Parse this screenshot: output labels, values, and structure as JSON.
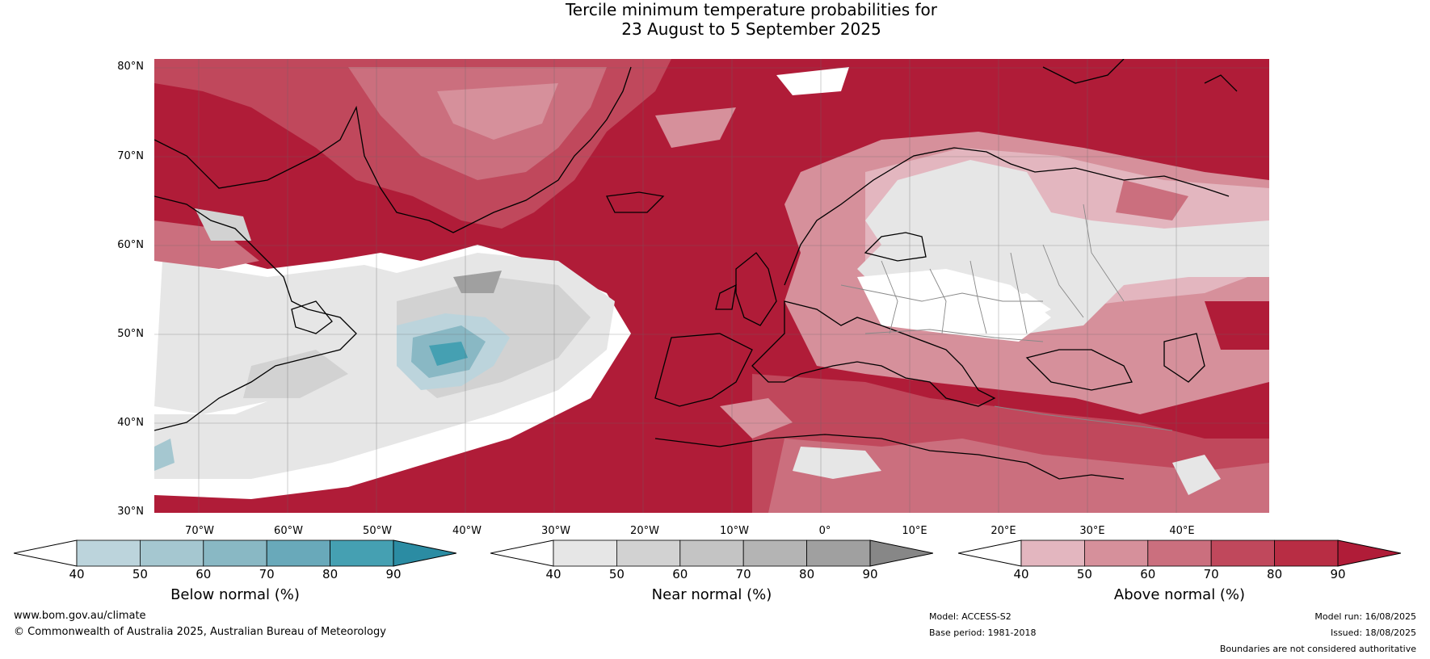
{
  "title": {
    "line1": "Tercile minimum temperature probabilities for",
    "line2": "23 August to 5 September 2025"
  },
  "lat_labels": [
    "80°N",
    "70°N",
    "60°N",
    "50°N",
    "40°N",
    "30°N"
  ],
  "lon_labels": [
    "70°W",
    "60°W",
    "50°W",
    "40°W",
    "30°W",
    "20°W",
    "10°W",
    "0°",
    "10°E",
    "20°E",
    "30°E",
    "40°E"
  ],
  "legends": [
    {
      "title": "Below normal (%)",
      "ticks": [
        "40",
        "50",
        "60",
        "70",
        "80",
        "90"
      ],
      "colors": [
        "#ffffff",
        "#bcd4dc",
        "#a5c7d0",
        "#89b8c4",
        "#69a9ba",
        "#45a0b2",
        "#2b8ca3"
      ]
    },
    {
      "title": "Near normal (%)",
      "ticks": [
        "40",
        "50",
        "60",
        "70",
        "80",
        "90"
      ],
      "colors": [
        "#ffffff",
        "#e6e6e6",
        "#d2d2d2",
        "#c4c4c4",
        "#b4b4b4",
        "#a0a0a0",
        "#878787"
      ]
    },
    {
      "title": "Above normal (%)",
      "ticks": [
        "40",
        "50",
        "60",
        "70",
        "80",
        "90"
      ],
      "colors": [
        "#ffffff",
        "#e3b6bf",
        "#d6909b",
        "#cb6f7e",
        "#c0485c",
        "#b82d44",
        "#b01c38"
      ]
    }
  ],
  "footer": {
    "website": "www.bom.gov.au/climate",
    "copyright": "© Commonwealth of Australia 2025, Australian Bureau of Meteorology",
    "model": "Model: ACCESS-S2",
    "base_period": "Base period: 1981-2018",
    "model_run": "Model run: 16/08/2025",
    "issued": "Issued: 18/08/2025",
    "disclaimer": "Boundaries are not considered authoritative"
  }
}
